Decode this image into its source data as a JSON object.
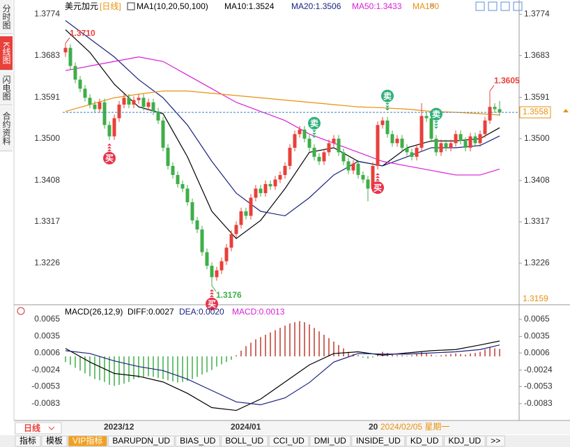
{
  "ui": {
    "sidebar": [
      "分时图",
      "K线图",
      "闪电图",
      "合约资料"
    ],
    "period_button": "日线",
    "bottom_tabs": [
      "指标",
      "模板",
      "VIP指标",
      "BARUPDN_UD",
      "BIAS_UD",
      "BOLL_UD",
      "CCI_UD",
      "DMI_UD",
      "INSIDE_UD",
      "KD_UD",
      "KDJ_UD",
      ">>"
    ]
  },
  "chart_data": [
    {
      "type": "candlestick",
      "title": "美元加元",
      "period": "[日线]",
      "indicator": "MA1(10,20,50,100)",
      "ylim": [
        1.3145,
        1.379
      ],
      "yticks": [
        1.3774,
        1.3683,
        1.3591,
        {
          "value": 1.35,
          "label": "1.3500"
        },
        1.3408,
        1.3317,
        1.3226
      ],
      "up_color": "#e8403a",
      "down_color": "#3fae49",
      "candles": [
        [
          1.369,
          1.371,
          1.368,
          1.37
        ],
        [
          1.37,
          1.3708,
          1.3652,
          1.366
        ],
        [
          1.366,
          1.3668,
          1.3622,
          1.363
        ],
        [
          1.363,
          1.3638,
          1.3602,
          1.361
        ],
        [
          1.361,
          1.3618,
          1.3582,
          1.359
        ],
        [
          1.359,
          1.3598,
          1.3567,
          1.3575
        ],
        [
          1.3575,
          1.3583,
          1.3557,
          1.3565
        ],
        [
          1.3565,
          1.3588,
          1.3557,
          1.358
        ],
        [
          1.358,
          1.3588,
          1.3522,
          1.353
        ],
        [
          1.353,
          1.3538,
          1.3497,
          1.3505
        ],
        [
          1.3505,
          1.3553,
          1.3497,
          1.3545
        ],
        [
          1.3545,
          1.3583,
          1.3537,
          1.3575
        ],
        [
          1.3575,
          1.3598,
          1.3567,
          1.359
        ],
        [
          1.359,
          1.3598,
          1.3567,
          1.3575
        ],
        [
          1.3575,
          1.3593,
          1.3567,
          1.3585
        ],
        [
          1.3585,
          1.3598,
          1.3577,
          1.359
        ],
        [
          1.359,
          1.3598,
          1.3562,
          1.357
        ],
        [
          1.357,
          1.3588,
          1.3562,
          1.358
        ],
        [
          1.358,
          1.3588,
          1.3552,
          1.356
        ],
        [
          1.356,
          1.3568,
          1.3532,
          1.354
        ],
        [
          1.354,
          1.3548,
          1.3472,
          1.348
        ],
        [
          1.348,
          1.3488,
          1.3432,
          1.344
        ],
        [
          1.344,
          1.3448,
          1.3412,
          1.342
        ],
        [
          1.342,
          1.3428,
          1.3392,
          1.34
        ],
        [
          1.34,
          1.3408,
          1.3382,
          1.339
        ],
        [
          1.339,
          1.3398,
          1.3352,
          1.336
        ],
        [
          1.336,
          1.3368,
          1.3312,
          1.332
        ],
        [
          1.332,
          1.3328,
          1.3292,
          1.33
        ],
        [
          1.33,
          1.3308,
          1.3242,
          1.325
        ],
        [
          1.325,
          1.3258,
          1.3212,
          1.322
        ],
        [
          1.322,
          1.3228,
          1.3176,
          1.3195
        ],
        [
          1.3195,
          1.3218,
          1.3187,
          1.321
        ],
        [
          1.321,
          1.3238,
          1.3202,
          1.323
        ],
        [
          1.323,
          1.3268,
          1.3222,
          1.326
        ],
        [
          1.326,
          1.3298,
          1.3252,
          1.329
        ],
        [
          1.329,
          1.3318,
          1.3282,
          1.331
        ],
        [
          1.331,
          1.3348,
          1.3302,
          1.334
        ],
        [
          1.334,
          1.3348,
          1.3322,
          1.333
        ],
        [
          1.333,
          1.3378,
          1.3322,
          1.337
        ],
        [
          1.337,
          1.3398,
          1.3362,
          1.339
        ],
        [
          1.339,
          1.3398,
          1.3372,
          1.338
        ],
        [
          1.338,
          1.3408,
          1.3372,
          1.34
        ],
        [
          1.34,
          1.3408,
          1.3387,
          1.3395
        ],
        [
          1.3395,
          1.3418,
          1.3387,
          1.341
        ],
        [
          1.341,
          1.3428,
          1.3402,
          1.342
        ],
        [
          1.342,
          1.3448,
          1.3412,
          1.344
        ],
        [
          1.344,
          1.3488,
          1.3432,
          1.348
        ],
        [
          1.348,
          1.3518,
          1.3472,
          1.351
        ],
        [
          1.351,
          1.3528,
          1.3502,
          1.352
        ],
        [
          1.352,
          1.3528,
          1.3492,
          1.35
        ],
        [
          1.35,
          1.3508,
          1.3472,
          1.348
        ],
        [
          1.348,
          1.3488,
          1.3452,
          1.346
        ],
        [
          1.346,
          1.3468,
          1.3442,
          1.345
        ],
        [
          1.345,
          1.3478,
          1.3442,
          1.347
        ],
        [
          1.347,
          1.3498,
          1.3462,
          1.349
        ],
        [
          1.349,
          1.3508,
          1.3482,
          1.35
        ],
        [
          1.35,
          1.3508,
          1.3462,
          1.347
        ],
        [
          1.347,
          1.3478,
          1.3442,
          1.345
        ],
        [
          1.345,
          1.3458,
          1.3422,
          1.343
        ],
        [
          1.343,
          1.3453,
          1.3422,
          1.3445
        ],
        [
          1.3445,
          1.3453,
          1.3412,
          1.342
        ],
        [
          1.342,
          1.3428,
          1.3402,
          1.341
        ],
        [
          1.341,
          1.3418,
          1.3362,
          1.339
        ],
        [
          1.339,
          1.3448,
          1.3382,
          1.344
        ],
        [
          1.344,
          1.3538,
          1.3432,
          1.353
        ],
        [
          1.353,
          1.3548,
          1.3522,
          1.354
        ],
        [
          1.354,
          1.3548,
          1.3502,
          1.351
        ],
        [
          1.351,
          1.3518,
          1.3482,
          1.349
        ],
        [
          1.349,
          1.3508,
          1.3482,
          1.35
        ],
        [
          1.35,
          1.3508,
          1.3472,
          1.348
        ],
        [
          1.348,
          1.3488,
          1.3462,
          1.347
        ],
        [
          1.347,
          1.3478,
          1.3452,
          1.346
        ],
        [
          1.346,
          1.3488,
          1.3452,
          1.348
        ],
        [
          1.348,
          1.3578,
          1.3472,
          1.355
        ],
        [
          1.355,
          1.3558,
          1.3537,
          1.3545
        ],
        [
          1.3545,
          1.3553,
          1.3492,
          1.35
        ],
        [
          1.35,
          1.3508,
          1.3462,
          1.347
        ],
        [
          1.347,
          1.3498,
          1.3462,
          1.349
        ],
        [
          1.349,
          1.3498,
          1.3472,
          1.348
        ],
        [
          1.348,
          1.3498,
          1.3472,
          1.349
        ],
        [
          1.349,
          1.3518,
          1.3482,
          1.351
        ],
        [
          1.351,
          1.3518,
          1.3487,
          1.3495
        ],
        [
          1.3495,
          1.3503,
          1.3472,
          1.348
        ],
        [
          1.348,
          1.3513,
          1.3472,
          1.3505
        ],
        [
          1.3505,
          1.3513,
          1.3482,
          1.349
        ],
        [
          1.349,
          1.3518,
          1.3482,
          1.351
        ],
        [
          1.351,
          1.3548,
          1.3502,
          1.354
        ],
        [
          1.354,
          1.3605,
          1.3532,
          1.357
        ],
        [
          1.357,
          1.3578,
          1.3557,
          1.3565
        ],
        [
          1.3565,
          1.3583,
          1.355,
          1.3558
        ]
      ],
      "ma_x": [
        0,
        5,
        10,
        15,
        20,
        25,
        30,
        35,
        40,
        45,
        50,
        55,
        60,
        65,
        70,
        75,
        80,
        85,
        89
      ],
      "series": [
        {
          "name": "MA10:1.3524",
          "color": "#000000",
          "values": [
            1.374,
            1.369,
            1.362,
            1.357,
            1.3555,
            1.346,
            1.334,
            1.328,
            1.332,
            1.339,
            1.347,
            1.348,
            1.345,
            1.344,
            1.348,
            1.3495,
            1.3495,
            1.35,
            1.3524
          ]
        },
        {
          "name": "MA20:1.3506",
          "color": "#1a237e",
          "values": [
            1.376,
            1.372,
            1.368,
            1.363,
            1.359,
            1.353,
            1.345,
            1.338,
            1.334,
            1.333,
            1.337,
            1.342,
            1.345,
            1.344,
            1.346,
            1.348,
            1.348,
            1.3485,
            1.3506
          ]
        },
        {
          "name": "MA50:1.3433",
          "color": "#d81ed8",
          "values": [
            1.365,
            1.366,
            1.367,
            1.368,
            1.367,
            1.364,
            1.361,
            1.358,
            1.356,
            1.354,
            1.351,
            1.349,
            1.347,
            1.345,
            1.344,
            1.343,
            1.342,
            1.342,
            1.3433
          ]
        },
        {
          "name": "MA100",
          "color": "#e8900c",
          "values": [
            1.356,
            1.3575,
            1.359,
            1.3598,
            1.3605,
            1.3605,
            1.36,
            1.3595,
            1.359,
            1.3585,
            1.358,
            1.3575,
            1.357,
            1.3568,
            1.3565,
            1.356,
            1.3558,
            1.3555,
            1.3552
          ]
        }
      ],
      "last_price": {
        "value": 1.3558,
        "label": "1.3558"
      },
      "axis_marker": {
        "value": 1.3159,
        "label": "1.3159"
      },
      "annotations": [
        {
          "index": 0,
          "value": 1.371,
          "label": "1.3710"
        },
        {
          "index": 30,
          "value": 1.3176,
          "label": "1.3176"
        },
        {
          "index": 87,
          "value": 1.3605,
          "label": "1.3605"
        }
      ],
      "signals": [
        {
          "index": 9,
          "label": "买"
        },
        {
          "index": 30,
          "label": "买"
        },
        {
          "index": 51,
          "label": "卖"
        },
        {
          "index": 64,
          "label": "买"
        },
        {
          "index": 66,
          "label": "卖"
        },
        {
          "index": 76,
          "label": "卖"
        }
      ],
      "x_labels": [
        {
          "index": 11,
          "label": "2023/12"
        },
        {
          "index": 37,
          "label": "2024/01"
        },
        {
          "index": 63,
          "label": "20"
        }
      ],
      "cursor_label": "2024/02/05 星期一"
    },
    {
      "type": "macd",
      "title": "MACD(26,12,9)",
      "ylim": [
        -0.0109,
        0.0087
      ],
      "yticks": [
        0.0065,
        0.0035,
        0.0006,
        -0.0024,
        -0.0053,
        -0.0083
      ],
      "histogram_name": "MACD:0.0013",
      "histogram_color": "#d81ed8",
      "up_color": "#c0392b",
      "down_color": "#3fae49",
      "histogram": [
        -0.001,
        -0.0015,
        -0.002,
        -0.0025,
        -0.003,
        -0.0035,
        -0.004,
        -0.0042,
        -0.0045,
        -0.005,
        -0.0052,
        -0.005,
        -0.0048,
        -0.0045,
        -0.004,
        -0.0038,
        -0.0036,
        -0.0035,
        -0.0036,
        -0.0038,
        -0.004,
        -0.0042,
        -0.0044,
        -0.0046,
        -0.0045,
        -0.0043,
        -0.004,
        -0.0036,
        -0.0032,
        -0.0028,
        -0.0024,
        -0.0018,
        -0.0014,
        -0.001,
        -0.0006,
        0.0002,
        0.001,
        0.0018,
        0.0024,
        0.003,
        0.0034,
        0.0038,
        0.0042,
        0.0046,
        0.005,
        0.0054,
        0.0058,
        0.006,
        0.0062,
        0.006,
        0.0056,
        0.005,
        0.0044,
        0.0038,
        0.0032,
        0.0026,
        0.002,
        0.0014,
        0.0008,
        0.0004,
        0.0002,
        -0.0002,
        -0.0004,
        -0.0002,
        0.0004,
        0.0008,
        0.0006,
        0.0004,
        0.0002,
        0.0002,
        0.0001,
        0.0002,
        0.0004,
        0.0008,
        0.0006,
        0.0003,
        0.0001,
        0.0002,
        0.0003,
        0.0004,
        0.0005,
        0.0004,
        0.0003,
        0.0005,
        0.0006,
        0.0008,
        0.0012,
        0.0016,
        0.0014,
        0.0013
      ],
      "x": [
        0,
        5,
        10,
        15,
        20,
        25,
        30,
        35,
        40,
        45,
        50,
        55,
        60,
        65,
        70,
        75,
        80,
        85,
        89
      ],
      "series": [
        {
          "name": "DIFF:0.0027",
          "color": "#000000",
          "values": [
            0.0014,
            -0.001,
            -0.003,
            -0.0035,
            -0.0045,
            -0.0065,
            -0.009,
            -0.0095,
            -0.0075,
            -0.0045,
            -0.0015,
            0.0005,
            0.0008,
            0.0002,
            0.0006,
            0.001,
            0.0012,
            0.002,
            0.0027
          ]
        },
        {
          "name": "DEA:0.0020",
          "color": "#1a237e",
          "values": [
            0.001,
            0.0005,
            -0.0008,
            -0.0018,
            -0.0025,
            -0.004,
            -0.006,
            -0.008,
            -0.0085,
            -0.0073,
            -0.0046,
            -0.001,
            0.0005,
            0.0004,
            0.0004,
            0.0006,
            0.0008,
            0.0012,
            0.002
          ]
        }
      ]
    }
  ]
}
